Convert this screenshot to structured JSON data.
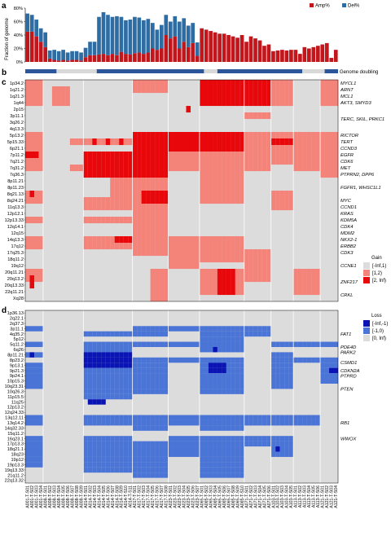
{
  "panels": {
    "a": "a",
    "b": "b",
    "c": "c",
    "d": "d"
  },
  "chart_data": [
    {
      "type": "bar",
      "panel": "a",
      "ylabel": "Fraction of genome",
      "yticks": [
        "0%",
        "20%",
        "40%",
        "60%",
        "80%"
      ],
      "ylim": [
        0,
        80
      ],
      "legend": [
        {
          "name": "Amp%",
          "color": "#c0161c"
        },
        {
          "name": "Del%",
          "color": "#2e6da4"
        }
      ],
      "amp": [
        45,
        45,
        38,
        30,
        22,
        5,
        3,
        2,
        3,
        2,
        3,
        3,
        2,
        7,
        10,
        10,
        11,
        12,
        10,
        12,
        10,
        15,
        12,
        11,
        13,
        14,
        12,
        14,
        20,
        18,
        20,
        40,
        35,
        38,
        20,
        30,
        22,
        28,
        9,
        50,
        48,
        46,
        44,
        42,
        42,
        40,
        38,
        36,
        40,
        30,
        38,
        35,
        32,
        24,
        26,
        16,
        17,
        18,
        17,
        18,
        18,
        12,
        22,
        20,
        22,
        24,
        26,
        28,
        6,
        18
      ],
      "del": [
        27,
        25,
        25,
        20,
        22,
        12,
        15,
        14,
        15,
        12,
        13,
        13,
        12,
        14,
        20,
        20,
        56,
        62,
        60,
        55,
        58,
        52,
        50,
        52,
        54,
        52,
        50,
        50,
        38,
        30,
        35,
        30,
        25,
        30,
        40,
        35,
        32,
        30,
        20,
        0,
        0,
        0,
        0,
        0,
        0,
        0,
        0,
        0,
        0,
        0,
        0,
        0,
        0,
        0,
        0,
        0,
        0,
        0,
        0,
        0,
        0,
        0,
        0,
        0,
        0,
        0,
        0,
        0,
        0,
        0
      ]
    },
    {
      "type": "heatmap",
      "panel": "b",
      "label": "Genome doubling",
      "segments": [
        [
          0,
          7,
          "#2b579a"
        ],
        [
          7,
          16,
          "#d9d9d9"
        ],
        [
          16,
          40,
          "#2b579a"
        ],
        [
          40,
          43,
          "#d9d9d9"
        ],
        [
          43,
          62,
          "#2b579a"
        ],
        [
          62,
          67,
          "#d9d9d9"
        ],
        [
          67,
          70,
          "#2b579a"
        ]
      ]
    },
    {
      "type": "heatmap",
      "panel": "c",
      "rows": [
        "1p34.2",
        "1q21.2",
        "1q21.3",
        "1q44",
        "2p15",
        "3p11.1",
        "3q26.2",
        "4q13.3",
        "5p13.2",
        "5p15.33",
        "6p21.1",
        "7p11.2",
        "7q21.2",
        "7q31.2",
        "7q36.3",
        "8p11.21",
        "8p11.23",
        "8q21.13",
        "8q24.21",
        "11q13.3",
        "12p12.1",
        "12p13.33",
        "12q14.1",
        "12q15",
        "14q13.3",
        "17q12",
        "17q25.3",
        "18q11.2",
        "19q12",
        "20q11.21",
        "20q13.2",
        "20q13.33",
        "22q11.21",
        "Xq28"
      ],
      "genes": [
        {
          "row": 0,
          "text": "MYCL1"
        },
        {
          "row": 1,
          "text": "ARNT"
        },
        {
          "row": 2,
          "text": "MCL1"
        },
        {
          "row": 3,
          "text": "AKT3, SMYD3"
        },
        {
          "row": 5.5,
          "text": "TERC, SKIL, PRKC1"
        },
        {
          "row": 8,
          "text": "RICTOR"
        },
        {
          "row": 9,
          "text": "TERT"
        },
        {
          "row": 10,
          "text": "CCND3"
        },
        {
          "row": 11,
          "text": "EGFR"
        },
        {
          "row": 12,
          "text": "CDK6"
        },
        {
          "row": 13,
          "text": "MET"
        },
        {
          "row": 14,
          "text": "PTPRN2, DPP6"
        },
        {
          "row": 16,
          "text": "FGFR1, WHSC1L1"
        },
        {
          "row": 18,
          "text": "MYC"
        },
        {
          "row": 19,
          "text": "CCND1"
        },
        {
          "row": 20,
          "text": "KRAS"
        },
        {
          "row": 21,
          "text": "KDM5A"
        },
        {
          "row": 22,
          "text": "CDK4"
        },
        {
          "row": 23,
          "text": "MDM2"
        },
        {
          "row": 24,
          "text": "NKX2-1"
        },
        {
          "row": 25,
          "text": "ERBB2"
        },
        {
          "row": 26,
          "text": "CDK3"
        },
        {
          "row": 28,
          "text": "CCNE1"
        },
        {
          "row": 30.5,
          "text": "ZNF217"
        },
        {
          "row": 32.5,
          "text": "CRKL"
        }
      ],
      "legend_title": "Gain",
      "legend": [
        {
          "name": "[-Inf,1)",
          "color": "#dcdcdc"
        },
        {
          "name": "[1,2)",
          "color": "#f4837a"
        },
        {
          "name": "[2, Inf)",
          "color": "#e8070b"
        }
      ]
    },
    {
      "type": "heatmap",
      "panel": "d",
      "rows": [
        "1p36.13",
        "2q22.1",
        "2q37.3",
        "3p11.1",
        "4q35.2",
        "5p12",
        "5q11.2",
        "6q26",
        "8p11.21",
        "8p23.2",
        "9p13.1",
        "9p21.3",
        "9p24.1",
        "10p15.3",
        "10q23.31",
        "10q26.3",
        "11p15.5",
        "11q25",
        "12p13.2",
        "12q24.33",
        "13q12.11",
        "13q14.2",
        "14q32.33",
        "15q11.2",
        "16q23.1",
        "17p13.3",
        "18q21.1",
        "18q23",
        "19p12",
        "19p13.3",
        "19q13.33",
        "21q11.2",
        "22q13.32"
      ],
      "genes": [
        {
          "row": 4,
          "text": "FAT1"
        },
        {
          "row": 6.5,
          "text": "PDE4D"
        },
        {
          "row": 7.5,
          "text": "PARK2"
        },
        {
          "row": 9.5,
          "text": "CSMD1"
        },
        {
          "row": 11,
          "text": "CDKN2A"
        },
        {
          "row": 12,
          "text": "PTPRD"
        },
        {
          "row": 14.5,
          "text": "PTEN"
        },
        {
          "row": 21,
          "text": "RB1"
        },
        {
          "row": 24,
          "text": "WWOX"
        }
      ],
      "legend_title": "Loss",
      "legend": [
        {
          "name": "[-Inf,-1)",
          "color": "#0a14b4"
        },
        {
          "name": "[-1,0)",
          "color": "#4a74d6"
        },
        {
          "name": "[0, Inf)",
          "color": "#dcdcdc"
        }
      ]
    }
  ],
  "samples": [
    "A001-T-S01",
    "A001-T-S02",
    "A001-T-S03",
    "A001-T-S04",
    "A008-T-S01",
    "A008-T-S02",
    "A008-T-S03",
    "A008-T-S04",
    "A008-T-S05",
    "A008-T-S06",
    "A008-T-S07",
    "A008-T-S08",
    "A008-T-S09",
    "A014-T-S01",
    "A014-T-S02",
    "A014-T-S03",
    "A014-T-S04",
    "A014-T-S05",
    "A014-T-S06",
    "A014-T-S07",
    "A014-T-S08",
    "A014-T-S09",
    "A014-T-S10",
    "A014-T-S11",
    "A017-T-S01",
    "A017-T-S02",
    "A017-T-S03",
    "A017-T-S04",
    "A017-T-S05",
    "A017-T-S06",
    "A017-T-S07",
    "A017-T-S08",
    "A023-T-S01",
    "A023-T-S02",
    "A023-T-S03",
    "A023-T-S04",
    "A023-T-S05",
    "A023-T-S06",
    "A023-T-S07",
    "A065-T-S01",
    "A065-T-S02",
    "A065-T-S03",
    "A065-T-S04",
    "A065-T-S05",
    "A065-T-S06",
    "A065-T-S07",
    "A065-T-S08",
    "A065-T-S09",
    "A065-T-S10",
    "A071-T-S01",
    "A071-T-S02",
    "A071-T-S03",
    "A071-T-S04",
    "A071-T-S05",
    "A071-T-S06",
    "A103-T-S01",
    "A103-T-S02",
    "A103-T-S03",
    "A103-T-S04",
    "A103-T-S05",
    "A113-T-S01",
    "A113-T-S02",
    "A113-T-S03",
    "A113-T-S04",
    "A113-T-S05",
    "A113-T-S06",
    "A121-T-S01",
    "A121-T-S02",
    "A121-T-S03",
    "A121-T-S04"
  ]
}
